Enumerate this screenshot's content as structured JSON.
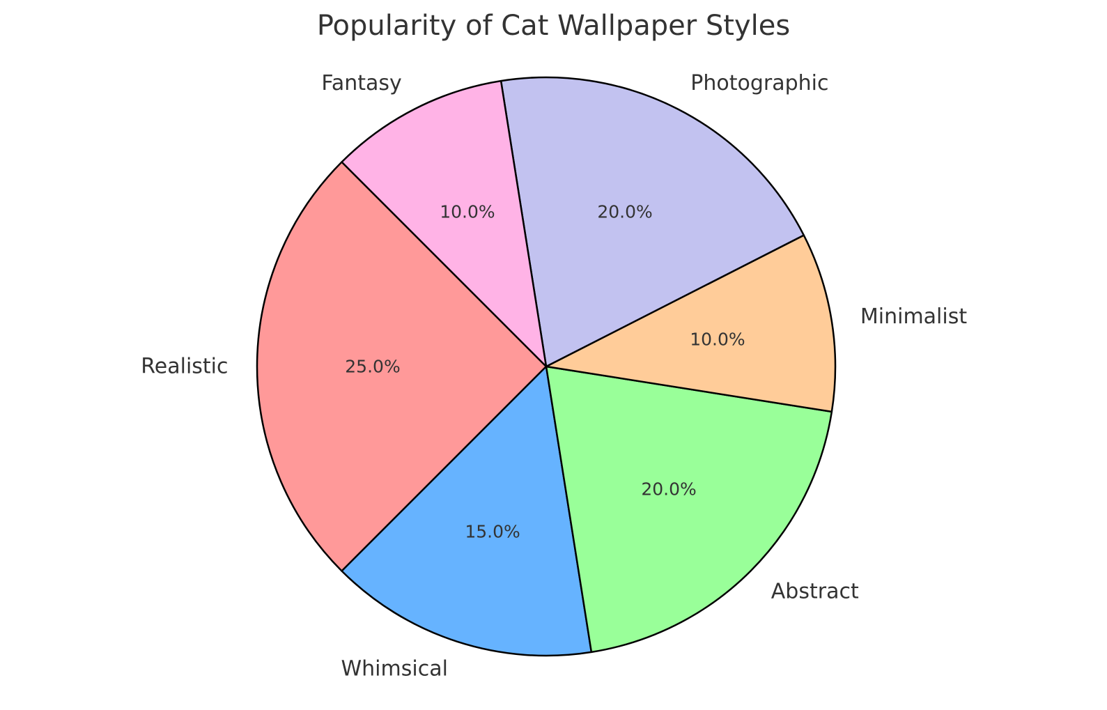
{
  "chart_data": {
    "type": "pie",
    "title": "Popularity of Cat Wallpaper Styles",
    "categories": [
      "Realistic",
      "Whimsical",
      "Abstract",
      "Minimalist",
      "Photographic",
      "Fantasy"
    ],
    "values": [
      25.0,
      15.0,
      20.0,
      10.0,
      20.0,
      10.0
    ],
    "value_labels": [
      "25.0%",
      "15.0%",
      "20.0%",
      "10.0%",
      "20.0%",
      "10.0%"
    ],
    "colors": [
      "#ff9999",
      "#66b3ff",
      "#99ff99",
      "#ffcc99",
      "#c2c2f0",
      "#ffb3e6"
    ],
    "start_angle_deg": 135,
    "direction": "counterclockwise",
    "edge_color": "#000000",
    "legend": "none"
  }
}
